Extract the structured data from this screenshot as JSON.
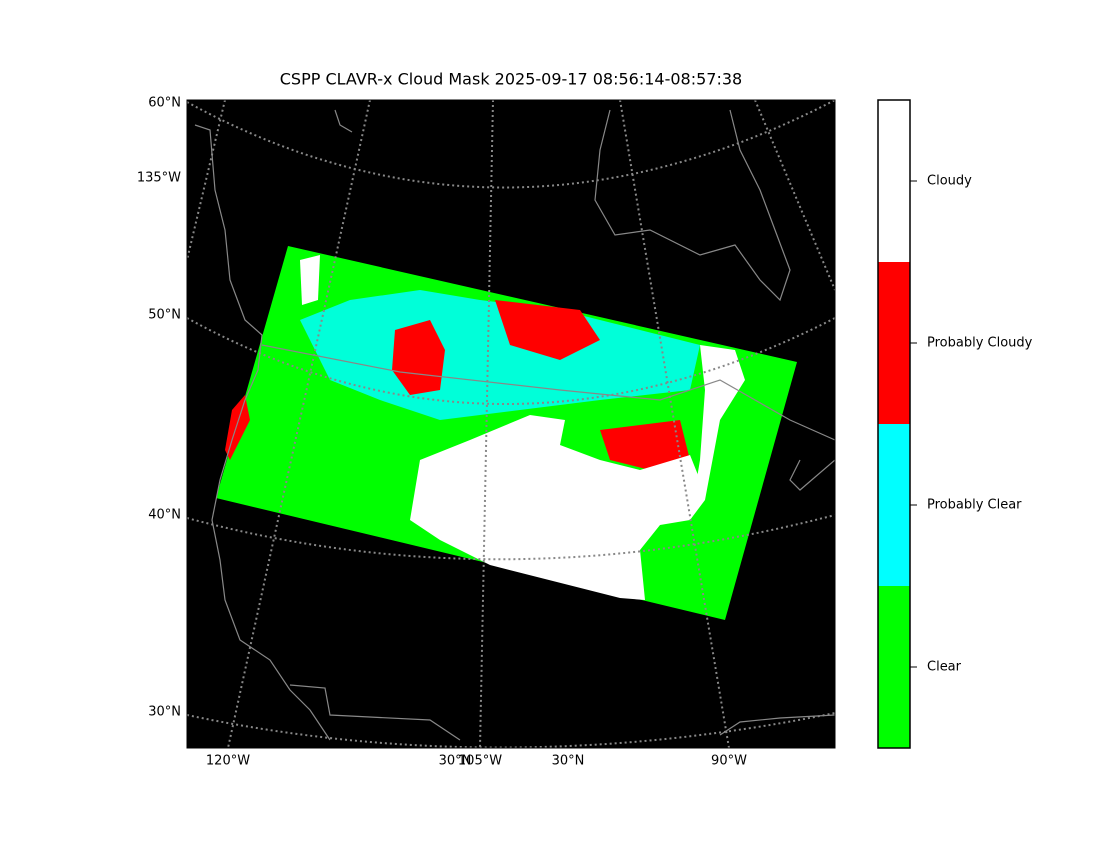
{
  "title": "CSPP CLAVR-x Cloud Mask 2025-09-17 08:56:14-08:57:38",
  "map": {
    "left_labels": [
      "60°N",
      "135°W",
      "50°N",
      "40°N",
      "30°N"
    ],
    "bottom_labels": [
      "120°W",
      "30°N",
      "105°W",
      "30°N",
      "90°W"
    ]
  },
  "colorbar": {
    "classes": [
      {
        "label": "Clear",
        "color": "#00ff00"
      },
      {
        "label": "Probably Clear",
        "color": "#00ffff"
      },
      {
        "label": "Probably Cloudy",
        "color": "#ff0000"
      },
      {
        "label": "Cloudy",
        "color": "#ffffff"
      }
    ]
  }
}
